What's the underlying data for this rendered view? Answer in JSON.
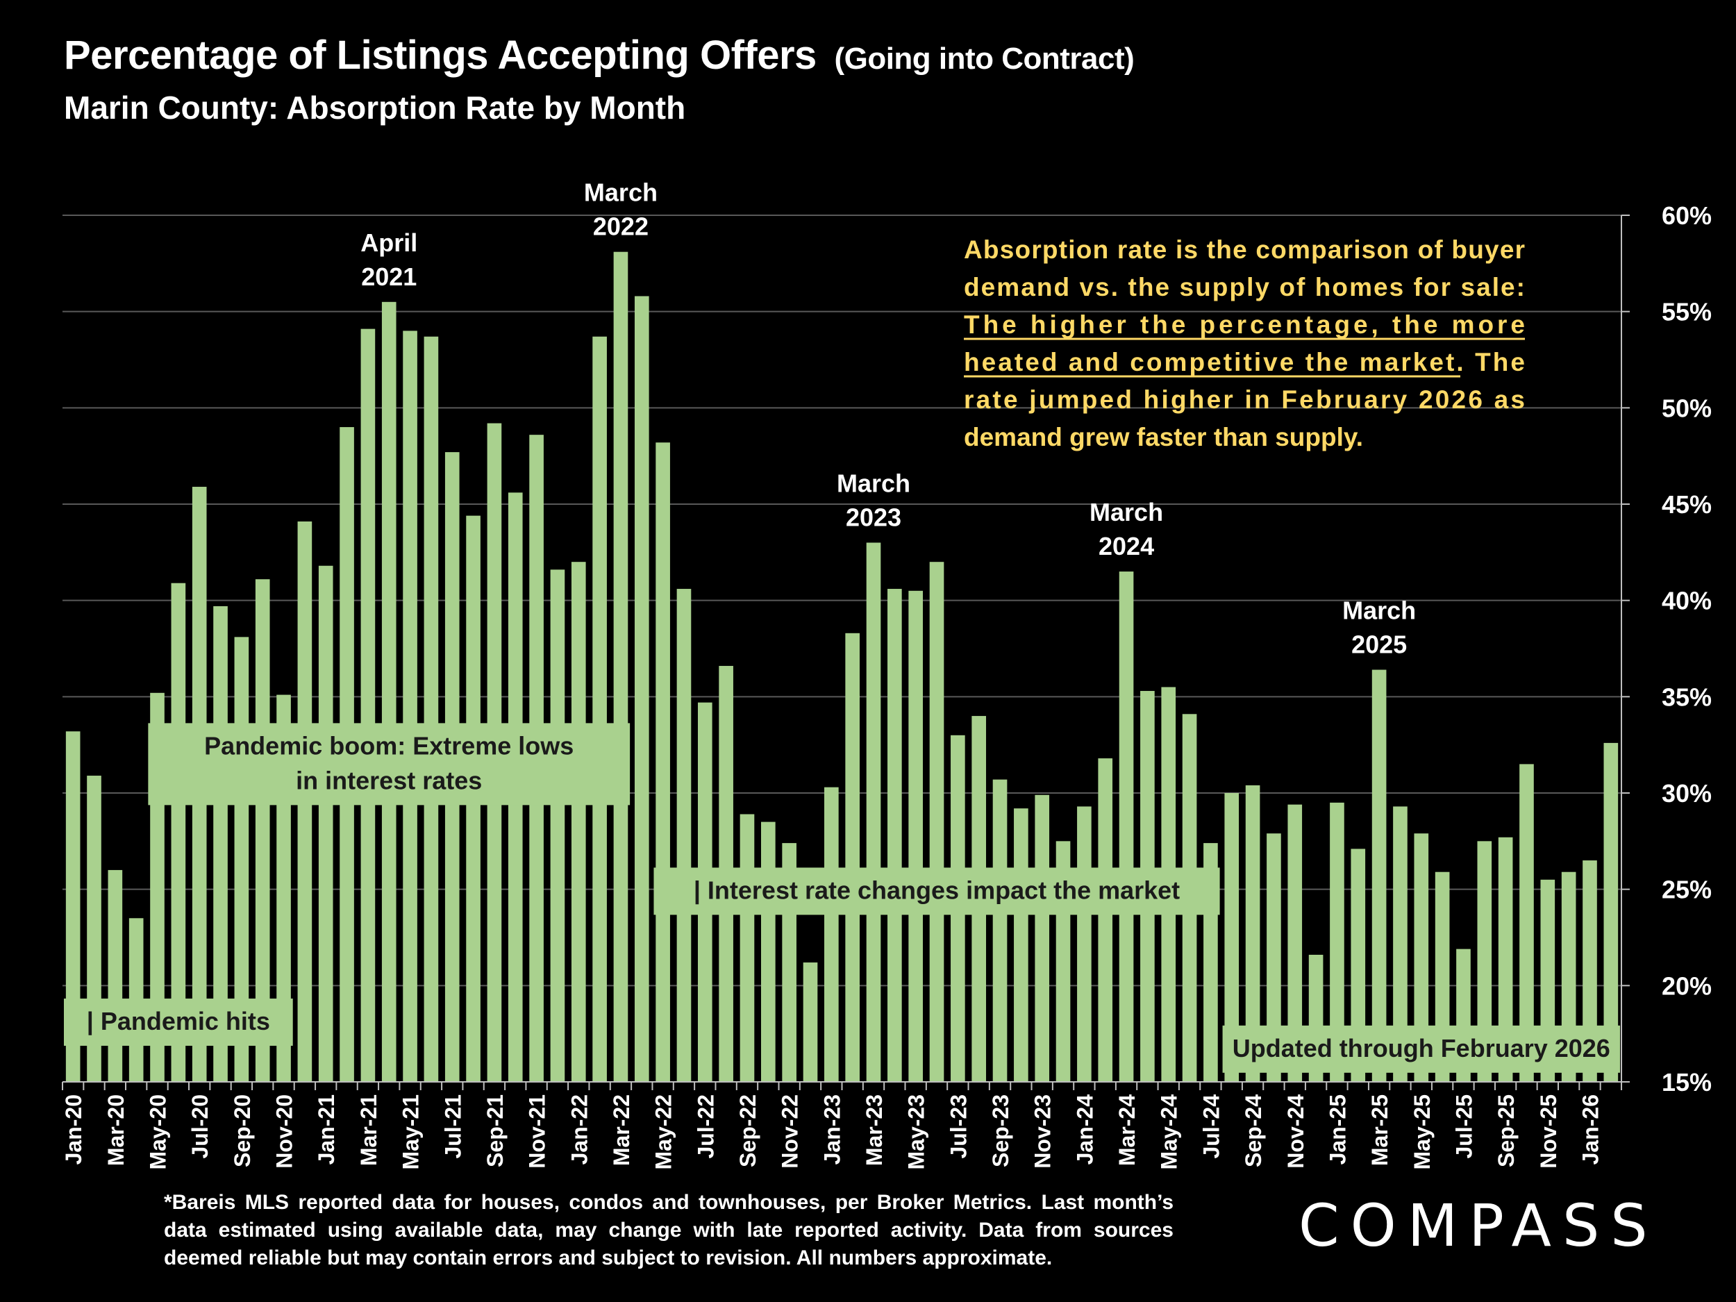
{
  "header": {
    "title": "Percentage of Listings Accepting Offers",
    "title_paren": "(Going into Contract)",
    "subtitle": "Marin County:  Absorption Rate by Month"
  },
  "colors": {
    "background": "#000000",
    "bar": "#a9d18e",
    "text": "#ffffff",
    "callout_text": "#ffd966",
    "annotation_text": "#1a1a1a",
    "grid": "#595959"
  },
  "chart_data": {
    "type": "bar",
    "y_axis_side": "right",
    "ylim": [
      15,
      60
    ],
    "y_ticks": [
      "15%",
      "20%",
      "25%",
      "30%",
      "35%",
      "40%",
      "45%",
      "50%",
      "55%",
      "60%"
    ],
    "grid": true,
    "categories": [
      "Jan-20",
      "Feb-20",
      "Mar-20",
      "Apr-20",
      "May-20",
      "Jun-20",
      "Jul-20",
      "Aug-20",
      "Sep-20",
      "Oct-20",
      "Nov-20",
      "Dec-20",
      "Jan-21",
      "Feb-21",
      "Mar-21",
      "Apr-21",
      "May-21",
      "Jun-21",
      "Jul-21",
      "Aug-21",
      "Sep-21",
      "Oct-21",
      "Nov-21",
      "Dec-21",
      "Jan-22",
      "Feb-22",
      "Mar-22",
      "Apr-22",
      "May-22",
      "Jun-22",
      "Jul-22",
      "Aug-22",
      "Sep-22",
      "Oct-22",
      "Nov-22",
      "Dec-22",
      "Jan-23",
      "Feb-23",
      "Mar-23",
      "Apr-23",
      "May-23",
      "Jun-23",
      "Jul-23",
      "Aug-23",
      "Sep-23",
      "Oct-23",
      "Nov-23",
      "Dec-23",
      "Jan-24",
      "Feb-24",
      "Mar-24",
      "Apr-24",
      "May-24",
      "Jun-24",
      "Jul-24",
      "Aug-24",
      "Sep-24",
      "Oct-24",
      "Nov-24",
      "Dec-24",
      "Jan-25",
      "Feb-25",
      "Mar-25",
      "Apr-25",
      "May-25",
      "Jun-25",
      "Jul-25",
      "Aug-25",
      "Sep-25",
      "Oct-25",
      "Nov-25",
      "Dec-25",
      "Jan-26",
      "Feb-26"
    ],
    "tick_labels_shown": [
      "Jan-20",
      "Mar-20",
      "May-20",
      "Jul-20",
      "Sep-20",
      "Nov-20",
      "Jan-21",
      "Mar-21",
      "May-21",
      "Jul-21",
      "Sep-21",
      "Nov-21",
      "Jan-22",
      "Mar-22",
      "May-22",
      "Jul-22",
      "Sep-22",
      "Nov-22",
      "Jan-23",
      "Mar-23",
      "May-23",
      "Jul-23",
      "Sep-23",
      "Nov-23",
      "Jan-24",
      "Mar-24",
      "May-24",
      "Jul-24",
      "Sep-24",
      "Nov-24",
      "Jan-25",
      "Mar-25",
      "May-25",
      "Jul-25",
      "Sep-25",
      "Nov-25",
      "Jan-26"
    ],
    "values": [
      33.2,
      30.9,
      26.0,
      23.5,
      35.2,
      40.9,
      45.9,
      39.7,
      38.1,
      41.1,
      35.1,
      44.1,
      41.8,
      49.0,
      54.1,
      55.5,
      54.0,
      53.7,
      47.7,
      44.4,
      49.2,
      45.6,
      48.6,
      41.6,
      42.0,
      53.7,
      58.1,
      55.8,
      48.2,
      40.6,
      34.7,
      36.6,
      28.9,
      28.5,
      27.4,
      21.2,
      30.3,
      38.3,
      43.0,
      40.6,
      40.5,
      42.0,
      33.0,
      34.0,
      30.7,
      29.2,
      29.9,
      27.5,
      29.3,
      31.8,
      41.5,
      35.3,
      35.5,
      34.1,
      27.4,
      30.0,
      30.4,
      27.9,
      29.4,
      21.6,
      29.5,
      27.1,
      36.4,
      29.3,
      27.9,
      25.9,
      21.9,
      27.5,
      27.7,
      31.5,
      25.5,
      25.9,
      26.5,
      32.6
    ],
    "peak_labels": [
      {
        "index": 15,
        "line1": "April",
        "line2": "2021"
      },
      {
        "index": 26,
        "line1": "March",
        "line2": "2022"
      },
      {
        "index": 38,
        "line1": "March",
        "line2": "2023"
      },
      {
        "index": 50,
        "line1": "March",
        "line2": "2024"
      },
      {
        "index": 62,
        "line1": "March",
        "line2": "2025"
      }
    ],
    "annotations": [
      {
        "start": 0,
        "end": 11,
        "y_value": 18.1,
        "lines": [
          "| Pandemic hits"
        ]
      },
      {
        "start": 4,
        "end": 27,
        "y_value": 31.5,
        "lines": [
          "Pandemic boom: Extreme lows",
          "in interest rates"
        ]
      },
      {
        "start": 28,
        "end": 55,
        "y_value": 24.9,
        "lines": [
          "| Interest rate changes impact the market"
        ]
      },
      {
        "start": 55,
        "end": 74,
        "y_value": 16.7,
        "lines": [
          "Updated through February 2026"
        ]
      }
    ],
    "callout": {
      "lines": [
        "Absorption rate is the comparison of buyer",
        "demand vs. the supply of homes for sale:",
        "The higher the percentage, the more",
        "heated and competitive the market. The",
        "rate jumped higher in February 2026 as",
        "demand grew faster than supply."
      ],
      "underline_text": "The higher the percentage, the more heated and competitive the market."
    }
  },
  "footnote": "*Bareis MLS reported data for houses, condos and townhouses, per Broker Metrics. Last month’s data estimated using available data, may change with late reported activity. Data from sources deemed reliable but may contain errors and subject to revision. All numbers approximate.",
  "logo": {
    "text": "COMPASS"
  }
}
